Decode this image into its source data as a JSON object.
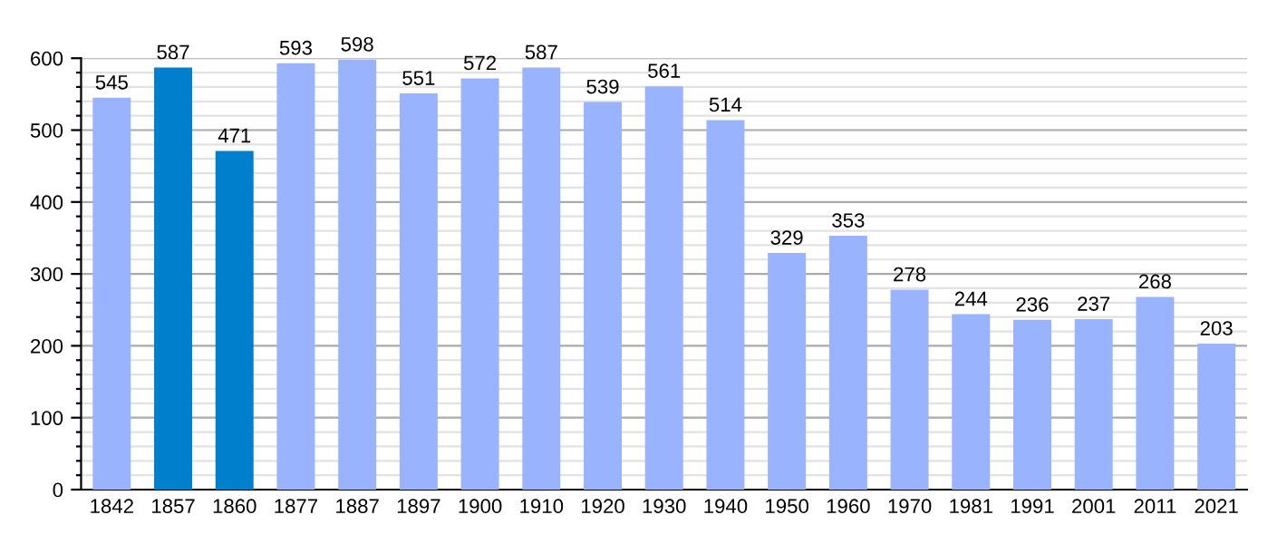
{
  "chart_data": {
    "type": "bar",
    "categories": [
      "1842",
      "1857",
      "1860",
      "1877",
      "1887",
      "1897",
      "1900",
      "1910",
      "1920",
      "1930",
      "1940",
      "1950",
      "1960",
      "1970",
      "1981",
      "1991",
      "2001",
      "2011",
      "2021"
    ],
    "values": [
      545,
      587,
      471,
      593,
      598,
      551,
      572,
      587,
      539,
      561,
      514,
      329,
      353,
      278,
      244,
      236,
      237,
      268,
      203
    ],
    "colors": [
      "#99b3ff",
      "#0080cc",
      "#0080cc",
      "#99b3ff",
      "#99b3ff",
      "#99b3ff",
      "#99b3ff",
      "#99b3ff",
      "#99b3ff",
      "#99b3ff",
      "#99b3ff",
      "#99b3ff",
      "#99b3ff",
      "#99b3ff",
      "#99b3ff",
      "#99b3ff",
      "#99b3ff",
      "#99b3ff",
      "#99b3ff"
    ],
    "ylim": [
      0,
      600
    ],
    "yticks": [
      0,
      {
        "value": 20,
        "label": null
      },
      {
        "value": 40,
        "label": null
      },
      {
        "value": 60,
        "label": null
      },
      {
        "value": 80,
        "label": null
      },
      100,
      {
        "value": 120,
        "label": null
      },
      {
        "value": 140,
        "label": null
      },
      {
        "value": 160,
        "label": null
      },
      {
        "value": 180,
        "label": null
      },
      200,
      {
        "value": 220,
        "label": null
      },
      {
        "value": 240,
        "label": null
      },
      {
        "value": 260,
        "label": null
      },
      {
        "value": 280,
        "label": null
      },
      300,
      {
        "value": 320,
        "label": null
      },
      {
        "value": 340,
        "label": null
      },
      {
        "value": 360,
        "label": null
      },
      {
        "value": 380,
        "label": null
      },
      400,
      {
        "value": 420,
        "label": null
      },
      {
        "value": 440,
        "label": null
      },
      {
        "value": 460,
        "label": null
      },
      {
        "value": 480,
        "label": null
      },
      500,
      {
        "value": 520,
        "label": null
      },
      {
        "value": 540,
        "label": null
      },
      {
        "value": 560,
        "label": null
      },
      {
        "value": 580,
        "label": null
      },
      600
    ],
    "grid": "y",
    "data_labels": true
  }
}
